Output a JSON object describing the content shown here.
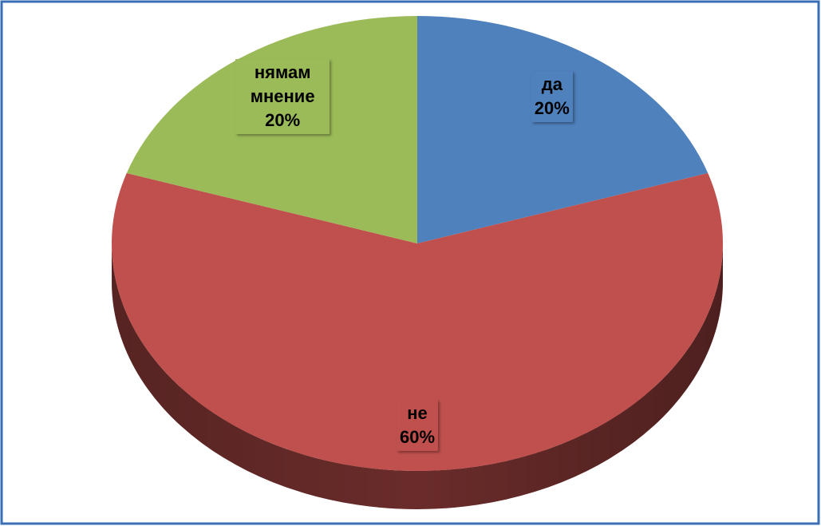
{
  "chart_data": {
    "type": "pie",
    "categories": [
      "да",
      "не",
      "нямам мнение"
    ],
    "values": [
      20,
      60,
      20
    ],
    "value_labels": [
      "20%",
      "60%",
      "20%"
    ],
    "colors": [
      "#4f81bd",
      "#c0504d",
      "#9bbb59"
    ]
  }
}
